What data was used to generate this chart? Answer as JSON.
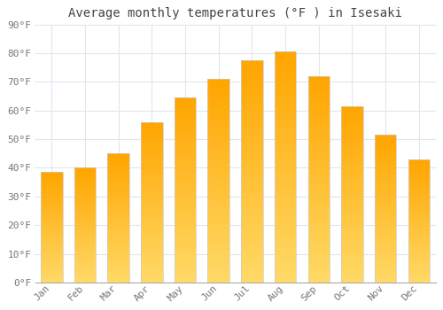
{
  "title": "Average monthly temperatures (°F ) in Isesaki",
  "months": [
    "Jan",
    "Feb",
    "Mar",
    "Apr",
    "May",
    "Jun",
    "Jul",
    "Aug",
    "Sep",
    "Oct",
    "Nov",
    "Dec"
  ],
  "values": [
    38.5,
    40.0,
    45.0,
    56.0,
    64.5,
    71.0,
    77.5,
    80.5,
    72.0,
    61.5,
    51.5,
    43.0
  ],
  "bar_color_top": "#FFA500",
  "bar_color_bottom": "#FFD966",
  "bar_edge_color": "#cccccc",
  "background_color": "#ffffff",
  "grid_color": "#dde8f0",
  "ylim": [
    0,
    90
  ],
  "yticks": [
    0,
    10,
    20,
    30,
    40,
    50,
    60,
    70,
    80,
    90
  ],
  "title_fontsize": 10,
  "tick_fontsize": 8,
  "bar_width": 0.65
}
